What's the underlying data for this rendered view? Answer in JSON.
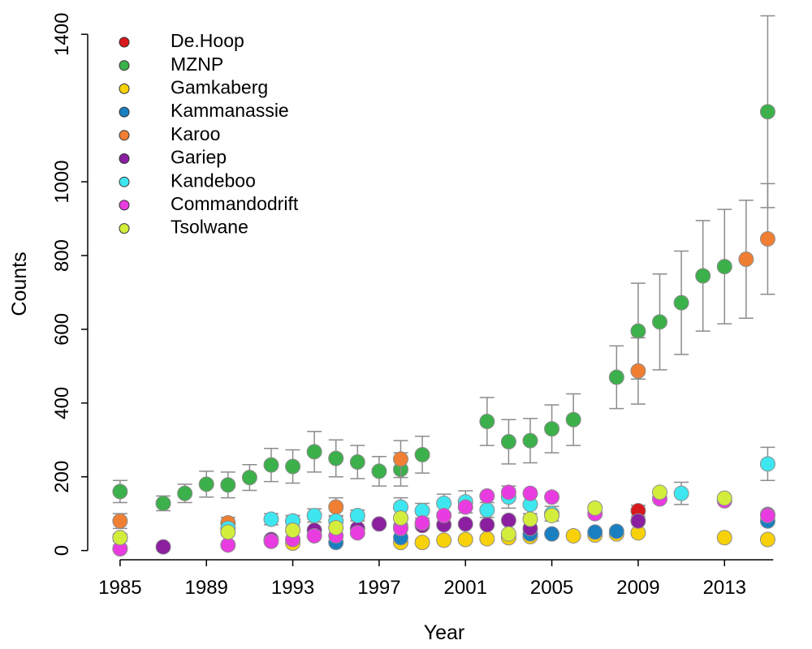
{
  "chart_data": {
    "type": "scatter",
    "x_label": "Year",
    "y_label": "Counts",
    "xlim": [
      1983.5,
      2016.3
    ],
    "ylim": [
      -25,
      1460
    ],
    "xticks": [
      1985,
      1989,
      1993,
      1997,
      2001,
      2005,
      2009,
      2013
    ],
    "yticks": [
      0,
      200,
      400,
      600,
      800,
      1000,
      1400
    ],
    "legend": "top-left",
    "series": [
      {
        "name": "De.Hoop",
        "color": "#d7191c",
        "x": [
          2009
        ],
        "values": [
          108
        ],
        "errors": [
          15
        ]
      },
      {
        "name": "MZNP",
        "color": "#3cb04a",
        "x": [
          1985,
          1987,
          1988,
          1989,
          1990,
          1991,
          1992,
          1993,
          1994,
          1995,
          1996,
          1997,
          1998,
          1999,
          2002,
          2003,
          2004,
          2005,
          2006,
          2008,
          2009,
          2010,
          2011,
          2012,
          2013,
          2015
        ],
        "values": [
          160,
          128,
          155,
          180,
          178,
          198,
          232,
          228,
          268,
          250,
          240,
          215,
          220,
          260,
          350,
          295,
          298,
          330,
          355,
          470,
          595,
          620,
          672,
          745,
          770,
          1190
        ],
        "errors": [
          30,
          20,
          25,
          35,
          35,
          35,
          45,
          45,
          55,
          50,
          45,
          40,
          45,
          50,
          65,
          60,
          60,
          65,
          70,
          85,
          130,
          130,
          140,
          150,
          155,
          260
        ]
      },
      {
        "name": "Gamkaberg",
        "color": "#f7d10a",
        "x": [
          1993,
          1998,
          1999,
          2000,
          2001,
          2002,
          2003,
          2004,
          2006,
          2007,
          2008,
          2009,
          2013,
          2015
        ],
        "values": [
          20,
          22,
          22,
          28,
          30,
          32,
          35,
          38,
          40,
          42,
          45,
          48,
          35,
          30
        ]
      },
      {
        "name": "Kammanassie",
        "color": "#1a7fc1",
        "x": [
          1995,
          1998,
          2004,
          2005,
          2007,
          2008,
          2015
        ],
        "values": [
          22,
          35,
          45,
          45,
          50,
          52,
          80
        ]
      },
      {
        "name": "Karoo",
        "color": "#f07f33",
        "x": [
          1985,
          1990,
          1993,
          1995,
          1998,
          2009,
          2014,
          2015
        ],
        "values": [
          80,
          75,
          80,
          118,
          248,
          487,
          790,
          845
        ],
        "errors": [
          20,
          15,
          15,
          25,
          50,
          90,
          160,
          150
        ]
      },
      {
        "name": "Gariep",
        "color": "#8b1fa0",
        "x": [
          1985,
          1987,
          1992,
          1994,
          1996,
          1997,
          1998,
          1999,
          2000,
          2001,
          2002,
          2003,
          2004,
          2009,
          2015
        ],
        "values": [
          5,
          10,
          30,
          55,
          60,
          72,
          65,
          68,
          70,
          72,
          70,
          82,
          60,
          80,
          98
        ]
      },
      {
        "name": "Kandeboo",
        "color": "#3ee6f0",
        "x": [
          1985,
          1990,
          1992,
          1993,
          1994,
          1995,
          1996,
          1998,
          1999,
          2000,
          2001,
          2002,
          2003,
          2004,
          2005,
          2011,
          2015
        ],
        "values": [
          35,
          60,
          85,
          80,
          95,
          80,
          95,
          118,
          108,
          128,
          132,
          110,
          145,
          125,
          100,
          155,
          235
        ],
        "errors": [
          10,
          15,
          15,
          15,
          18,
          15,
          15,
          25,
          20,
          25,
          30,
          20,
          30,
          25,
          20,
          30,
          45
        ]
      },
      {
        "name": "Commandodrift",
        "color": "#e83ce0",
        "x": [
          1985,
          1990,
          1992,
          1993,
          1994,
          1995,
          1996,
          1998,
          1999,
          2000,
          2001,
          2002,
          2003,
          2004,
          2005,
          2007,
          2010,
          2013,
          2015
        ],
        "values": [
          5,
          15,
          25,
          30,
          40,
          40,
          48,
          60,
          75,
          95,
          118,
          148,
          158,
          155,
          145,
          100,
          140,
          135,
          95
        ]
      },
      {
        "name": "Tsolwane",
        "color": "#d4ed3c",
        "x": [
          1985,
          1990,
          1993,
          1995,
          1998,
          2003,
          2004,
          2005,
          2007,
          2010,
          2013
        ],
        "values": [
          35,
          50,
          55,
          62,
          88,
          45,
          85,
          95,
          115,
          158,
          142
        ]
      }
    ]
  }
}
